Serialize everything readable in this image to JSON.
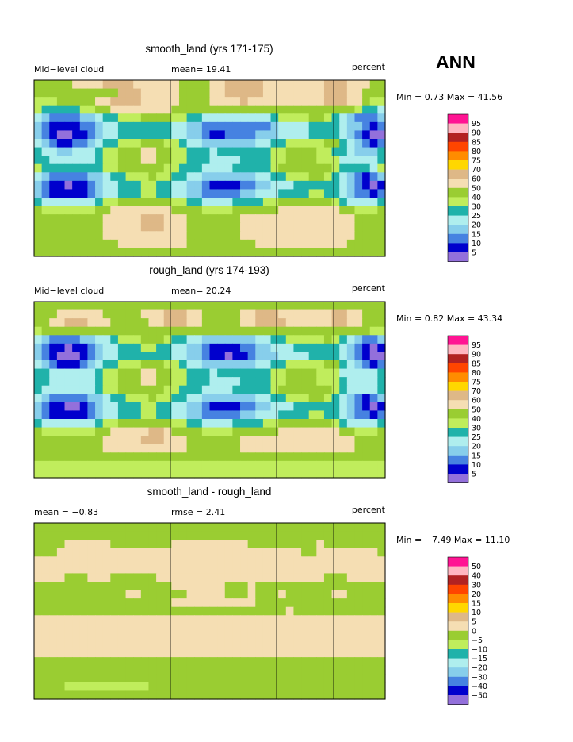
{
  "season_label": "ANN",
  "chart_data": [
    {
      "type": "heatmap",
      "title": "smooth_land (yrs 171-175)",
      "left_label": "Mid−level cloud",
      "center_label": "mean=  19.41",
      "right_label": "percent",
      "stats": "Min =   0.73 Max =  41.56",
      "min": 0.73,
      "max": 41.56,
      "mean": 19.41,
      "colorbar_levels": [
        "95",
        "90",
        "85",
        "80",
        "75",
        "70",
        "60",
        "50",
        "40",
        "30",
        "25",
        "20",
        "15",
        "10",
        "5"
      ],
      "colorbar_colors": [
        "#ff1493",
        "#ffb6c1",
        "#b22222",
        "#ff4500",
        "#ff8c00",
        "#ffd700",
        "#deb887",
        "#f5deb3",
        "#9acd32",
        "#c0ed5c",
        "#20b2aa",
        "#afeeee",
        "#87ceeb",
        "#4682e1",
        "#0000cd",
        "#9370db"
      ],
      "grid_rows": [
        "7777788889999888888777788999998888888899988877",
        "7777777777799988888777788999998888888899988777",
        "6667777788999988888777788889888888888899988766",
        "6555556677888888887777777777777777777777776554",
        "4322223345566677776655444444444566667765432223",
        "3211112234455555554433222222222344445555433212",
        "3210011234455555554433211222233344445555432100",
        "4321122345566677766544333333344556666677543212",
        "5443344456677788776655545555555667777665543335",
        "5544444456677788776655544445555667777666444445",
        "6555555556677777766555444455555677777776555546",
        "4322222334556667665544333333344556667765432123",
        "3211011234455566554433211112233444555555432101",
        "3211111234455566554433222223344455556655432212",
        "5444444456677777776655444455556677777776544445",
        "7666666677888888887777666677777788888888776667",
        "7777777778888899988877777778888888888888887777",
        "7777777778888899988877777778888888888888887777",
        "7777777778888888888877777778888888888888887777",
        "7777777777788888888877777777788888888888877777",
        "7777777777777777777777777777777777777777777777"
      ]
    },
    {
      "type": "heatmap",
      "title": "rough_land (yrs 174-193)",
      "left_label": "Mid−level cloud",
      "center_label": "mean=  20.24",
      "right_label": "percent",
      "stats": "Min =   0.82 Max =  43.34",
      "min": 0.82,
      "max": 43.34,
      "mean": 20.24,
      "colorbar_levels": [
        "95",
        "90",
        "85",
        "80",
        "75",
        "70",
        "60",
        "50",
        "40",
        "30",
        "25",
        "20",
        "15",
        "10",
        "5"
      ],
      "colorbar_colors": [
        "#ff1493",
        "#ffb6c1",
        "#b22222",
        "#ff4500",
        "#ff8c00",
        "#ffd700",
        "#deb887",
        "#f5deb3",
        "#9acd32",
        "#c0ed5c",
        "#20b2aa",
        "#afeeee",
        "#87ceeb",
        "#4682e1",
        "#0000cd",
        "#9370db"
      ],
      "grid_rows": [
        "7777777777777777777777777777777777777777777777",
        "7778888887777788899988777778899988888889988777",
        "7788999888777778899988777778899998888889988777",
        "6777777777777777777777777777777777777777777766",
        "4322223344566677765544333333344556666676543223",
        "3211011234455566554433211112233444555555432101",
        "3210001234455555554433211011233344445555432100",
        "4321112345566677766544333333344556666677543212",
        "5544444456677788776655545555555667777666444445",
        "5544444456677788776655544445555667777666544445",
        "5444444456677777766555444455555677777776544445",
        "4322222334556667665544333333344556667765432123",
        "3211001234455566554433211112233444555555432101",
        "3211111234455566554433222223344455556655432212",
        "5444444456677777776655444455556677777776544445",
        "7666666677888889987777666677777788888888776667",
        "7777777778888899988877777778888888888888887777",
        "7777777778888888888877777778888888888888887777",
        "7777777777777777777777777777777777777777777777",
        "6666666666666666666666666666666666666666666666",
        "6666666666666666666666666666666666666666666666"
      ]
    },
    {
      "type": "heatmap",
      "title": "smooth_land - rough_land",
      "left_label": "mean =   −0.83",
      "center_label": "rmse =    2.41",
      "right_label": "percent",
      "stats": "Min =  −7.49 Max =  11.10",
      "min": -7.49,
      "max": 11.1,
      "mean": -0.83,
      "rmse": 2.41,
      "colorbar_levels": [
        "50",
        "40",
        "30",
        "20",
        "15",
        "10",
        "5",
        "0",
        "−5",
        "−10",
        "−15",
        "−20",
        "−30",
        "−40",
        "−50"
      ],
      "colorbar_colors": [
        "#ff1493",
        "#ffb6c1",
        "#b22222",
        "#ff4500",
        "#ff8c00",
        "#ffd700",
        "#deb887",
        "#f5deb3",
        "#9acd32",
        "#c0ed5c",
        "#20b2aa",
        "#afeeee",
        "#87ceeb",
        "#4682e1",
        "#0000cd",
        "#9370db"
      ],
      "grid_rows": [
        "7777777777777777777777777777777777777777777777",
        "7777777777777777777777777777777777777777777777",
        "7777888888777777778888888888777777777877777777",
        "7778888888888888888888888888888888877888888887",
        "8888888888888888888888888888888888888888888888",
        "8888888888888888888888888888888888888888888888",
        "8888777888777777888888888888888888888877788888",
        "7777777777777777778888888777877777777777777777",
        "7777777777778877777788888777877787777778877777",
        "7777777777777777778888888888877777777777777777",
        "7777777777777777777777777777777778777777777777",
        "8888888888888888888888888888888888888888888888",
        "8888888888888888888888888888888888888888888888",
        "8888888888888888888888888888888888888888888888",
        "8888888888888888888888888888888888888888888888",
        "8888888888888888888888888888888888888888888888",
        "7777777777777777777777777777777777777777777777",
        "7777777777777777777777777777777777777777777777",
        "7777777777777777777777777777777777777777777777",
        "7777666666666667777777777777777777777777777777",
        "7777777777777777777777777777777777777777777777"
      ]
    }
  ]
}
